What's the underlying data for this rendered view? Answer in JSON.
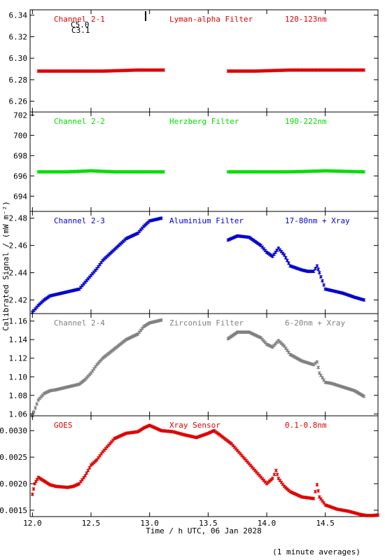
{
  "chart_data": {
    "type": "scatter",
    "xlabel": "Time / h UTC, 06 Jan 2028",
    "ylabel": "Calibrated Signal / (mW m⁻²)",
    "xlim": [
      11.98,
      14.95
    ],
    "xticks": [
      "12.0",
      "12.5",
      "13.0",
      "13.5",
      "14.0",
      "14.5"
    ],
    "note": "(1 minute averages)",
    "panels": [
      {
        "id": "ch1",
        "channel": "Channel 2-1",
        "filter": "Lyman-alpha Filter",
        "band": "120-123nm",
        "color": "#dd0000",
        "ylim": [
          6.25,
          6.345
        ],
        "yticks": [
          "6.26",
          "6.28",
          "6.30",
          "6.32",
          "6.34"
        ],
        "extra_labels": [
          "C5.0",
          "C3.1"
        ],
        "series": [
          {
            "x": [
              12.05,
              12.3,
              12.6,
              12.9,
              13.12
            ],
            "y": [
              6.288,
              6.288,
              6.288,
              6.289,
              6.289
            ]
          },
          {
            "x": [
              13.67,
              13.9,
              14.2,
              14.5,
              14.83
            ],
            "y": [
              6.288,
              6.288,
              6.289,
              6.289,
              6.289
            ]
          }
        ]
      },
      {
        "id": "ch2",
        "channel": "Channel 2-2",
        "filter": "Herzberg Filter",
        "band": "190-222nm",
        "color": "#00dd00",
        "ylim": [
          692.5,
          702.3
        ],
        "yticks": [
          "694",
          "696",
          "698",
          "700",
          "702"
        ],
        "series": [
          {
            "x": [
              12.05,
              12.3,
              12.5,
              12.7,
              12.9,
              13.12
            ],
            "y": [
              696.4,
              696.4,
              696.5,
              696.4,
              696.4,
              696.4
            ]
          },
          {
            "x": [
              13.67,
              13.9,
              14.2,
              14.5,
              14.83
            ],
            "y": [
              696.4,
              696.4,
              696.4,
              696.5,
              696.4
            ]
          }
        ]
      },
      {
        "id": "ch3",
        "channel": "Channel 2-3",
        "filter": "Aluminium Filter",
        "band": "17-80nm + Xray",
        "color": "#0000cc",
        "ylim": [
          2.41,
          2.485
        ],
        "yticks": [
          "2.42",
          "2.44",
          "2.46",
          "2.48"
        ],
        "series": [
          {
            "x": [
              12.0,
              12.05,
              12.1,
              12.15,
              12.2,
              12.3,
              12.4,
              12.45,
              12.5,
              12.55,
              12.6,
              12.7,
              12.8,
              12.9,
              12.95,
              13.0,
              13.1
            ],
            "y": [
              2.411,
              2.416,
              2.42,
              2.423,
              2.424,
              2.426,
              2.428,
              2.433,
              2.438,
              2.443,
              2.449,
              2.457,
              2.465,
              2.469,
              2.474,
              2.478,
              2.48
            ]
          },
          {
            "x": [
              13.67,
              13.75,
              13.85,
              13.95,
              14.0,
              14.05,
              14.1,
              14.15,
              14.2,
              14.3,
              14.35,
              14.4,
              14.43,
              14.45,
              14.5,
              14.55,
              14.65,
              14.75,
              14.83
            ],
            "y": [
              2.464,
              2.467,
              2.466,
              2.46,
              2.455,
              2.452,
              2.458,
              2.453,
              2.445,
              2.442,
              2.441,
              2.441,
              2.445,
              2.44,
              2.428,
              2.427,
              2.425,
              2.422,
              2.42
            ]
          }
        ]
      },
      {
        "id": "ch4",
        "channel": "Channel 2-4",
        "filter": "Zirconium Filter",
        "band": "6-20nm + Xray",
        "color": "#808080",
        "ylim": [
          1.058,
          1.168
        ],
        "yticks": [
          "1.06",
          "1.08",
          "1.10",
          "1.12",
          "1.14",
          "1.16"
        ],
        "series": [
          {
            "x": [
              12.0,
              12.05,
              12.1,
              12.15,
              12.2,
              12.3,
              12.4,
              12.45,
              12.5,
              12.55,
              12.6,
              12.7,
              12.8,
              12.9,
              12.95,
              13.0,
              13.1
            ],
            "y": [
              1.058,
              1.075,
              1.082,
              1.085,
              1.086,
              1.089,
              1.092,
              1.097,
              1.104,
              1.113,
              1.12,
              1.13,
              1.14,
              1.146,
              1.154,
              1.158,
              1.161
            ]
          },
          {
            "x": [
              13.67,
              13.75,
              13.85,
              13.95,
              14.0,
              14.05,
              14.1,
              14.15,
              14.2,
              14.3,
              14.4,
              14.43,
              14.45,
              14.5,
              14.55,
              14.65,
              14.75,
              14.83
            ],
            "y": [
              1.141,
              1.148,
              1.148,
              1.142,
              1.135,
              1.132,
              1.139,
              1.133,
              1.124,
              1.117,
              1.113,
              1.116,
              1.104,
              1.094,
              1.093,
              1.089,
              1.085,
              1.079
            ]
          }
        ]
      },
      {
        "id": "goes",
        "channel": "GOES",
        "filter": "Xray Sensor",
        "band": "0.1-0.8nm",
        "color": "#dd0000",
        "ylim": [
          0.00138,
          0.00328
        ],
        "yticks": [
          "0.0015",
          "0.0020",
          "0.0025",
          "0.0030"
        ],
        "series": [
          {
            "x": [
              12.0,
              12.02,
              12.05,
              12.1,
              12.15,
              12.2,
              12.3,
              12.35,
              12.4,
              12.45,
              12.5,
              12.55,
              12.6,
              12.7,
              12.8,
              12.9,
              12.95,
              13.0,
              13.1,
              13.2,
              13.3,
              13.4,
              13.5,
              13.55,
              13.6,
              13.7,
              13.8,
              13.9,
              14.0,
              14.05,
              14.08,
              14.1,
              14.15,
              14.2,
              14.3,
              14.4,
              14.43,
              14.45,
              14.5,
              14.6,
              14.7,
              14.8,
              14.85,
              14.9,
              14.95
            ],
            "y": [
              0.0018,
              0.002,
              0.00212,
              0.00205,
              0.00198,
              0.00195,
              0.00193,
              0.00195,
              0.002,
              0.00215,
              0.00235,
              0.00245,
              0.0026,
              0.00285,
              0.00295,
              0.00298,
              0.00305,
              0.0031,
              0.003,
              0.00298,
              0.00292,
              0.00287,
              0.00295,
              0.003,
              0.00292,
              0.00275,
              0.0025,
              0.00225,
              0.002,
              0.0021,
              0.00225,
              0.0021,
              0.00195,
              0.00185,
              0.00175,
              0.00172,
              0.00198,
              0.00175,
              0.0016,
              0.00152,
              0.00148,
              0.00142,
              0.0014,
              0.0014,
              0.00141
            ]
          }
        ]
      }
    ]
  }
}
